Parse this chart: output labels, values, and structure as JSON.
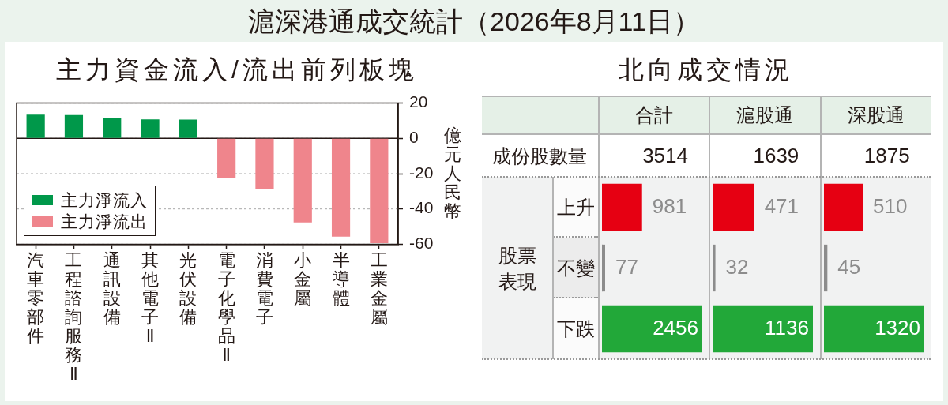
{
  "chart_data": [
    {
      "type": "bar",
      "title": "滬深港通成交統計（2026年8月11日）",
      "subtitle": "主力資金流入/流出前列板塊",
      "categories": [
        "汽車零部件",
        "工程諮詢服務Ⅱ",
        "通訊設備",
        "其他電子Ⅱ",
        "光伏設備",
        "電子化學品Ⅱ",
        "消費電子",
        "小金屬",
        "半導體",
        "工業金屬"
      ],
      "series": [
        {
          "name": "主力淨流入",
          "color": "#00984a",
          "values": [
            13.5,
            13.2,
            11.7,
            10.8,
            10.7,
            null,
            null,
            null,
            null,
            null
          ]
        },
        {
          "name": "主力淨流出",
          "color": "#ef858c",
          "values": [
            null,
            null,
            null,
            null,
            null,
            -22.4,
            -28.9,
            -47.6,
            -55.7,
            -59.4
          ]
        }
      ],
      "ylabel": "億元人民幣",
      "ylim": [
        -60,
        20
      ],
      "yticks": [
        -60,
        -40,
        -20,
        0,
        20
      ],
      "grid": "y",
      "legend": "bottom left"
    },
    {
      "type": "other",
      "title": "北向成交情況",
      "annotations": [
        "成份股數量"
      ]
    },
    {
      "type": "bar",
      "orientation": "horizontal",
      "title": "合計",
      "ylabel": "股票表現",
      "categories": [
        "上升",
        "不變",
        "下跌"
      ],
      "values": [
        981,
        77,
        2456
      ],
      "colors": [
        "#e60012",
        "#8c8c8c",
        "#22a839"
      ],
      "data_labels": true,
      "annotations": [
        "3514"
      ]
    },
    {
      "type": "bar",
      "orientation": "horizontal",
      "title": "滬股通",
      "categories": [
        null,
        null,
        null
      ],
      "values": [
        471,
        32,
        1136
      ],
      "colors": [
        "#e60012",
        "#8c8c8c",
        "#22a839"
      ],
      "data_labels": true,
      "annotations": [
        "1639"
      ]
    },
    {
      "type": "bar",
      "orientation": "horizontal",
      "title": "深股通",
      "categories": [
        null,
        null,
        null
      ],
      "values": [
        510,
        45,
        1320
      ],
      "colors": [
        "#e60012",
        "#8c8c8c",
        "#22a839"
      ],
      "data_labels": true,
      "annotations": [
        "1875"
      ]
    }
  ]
}
